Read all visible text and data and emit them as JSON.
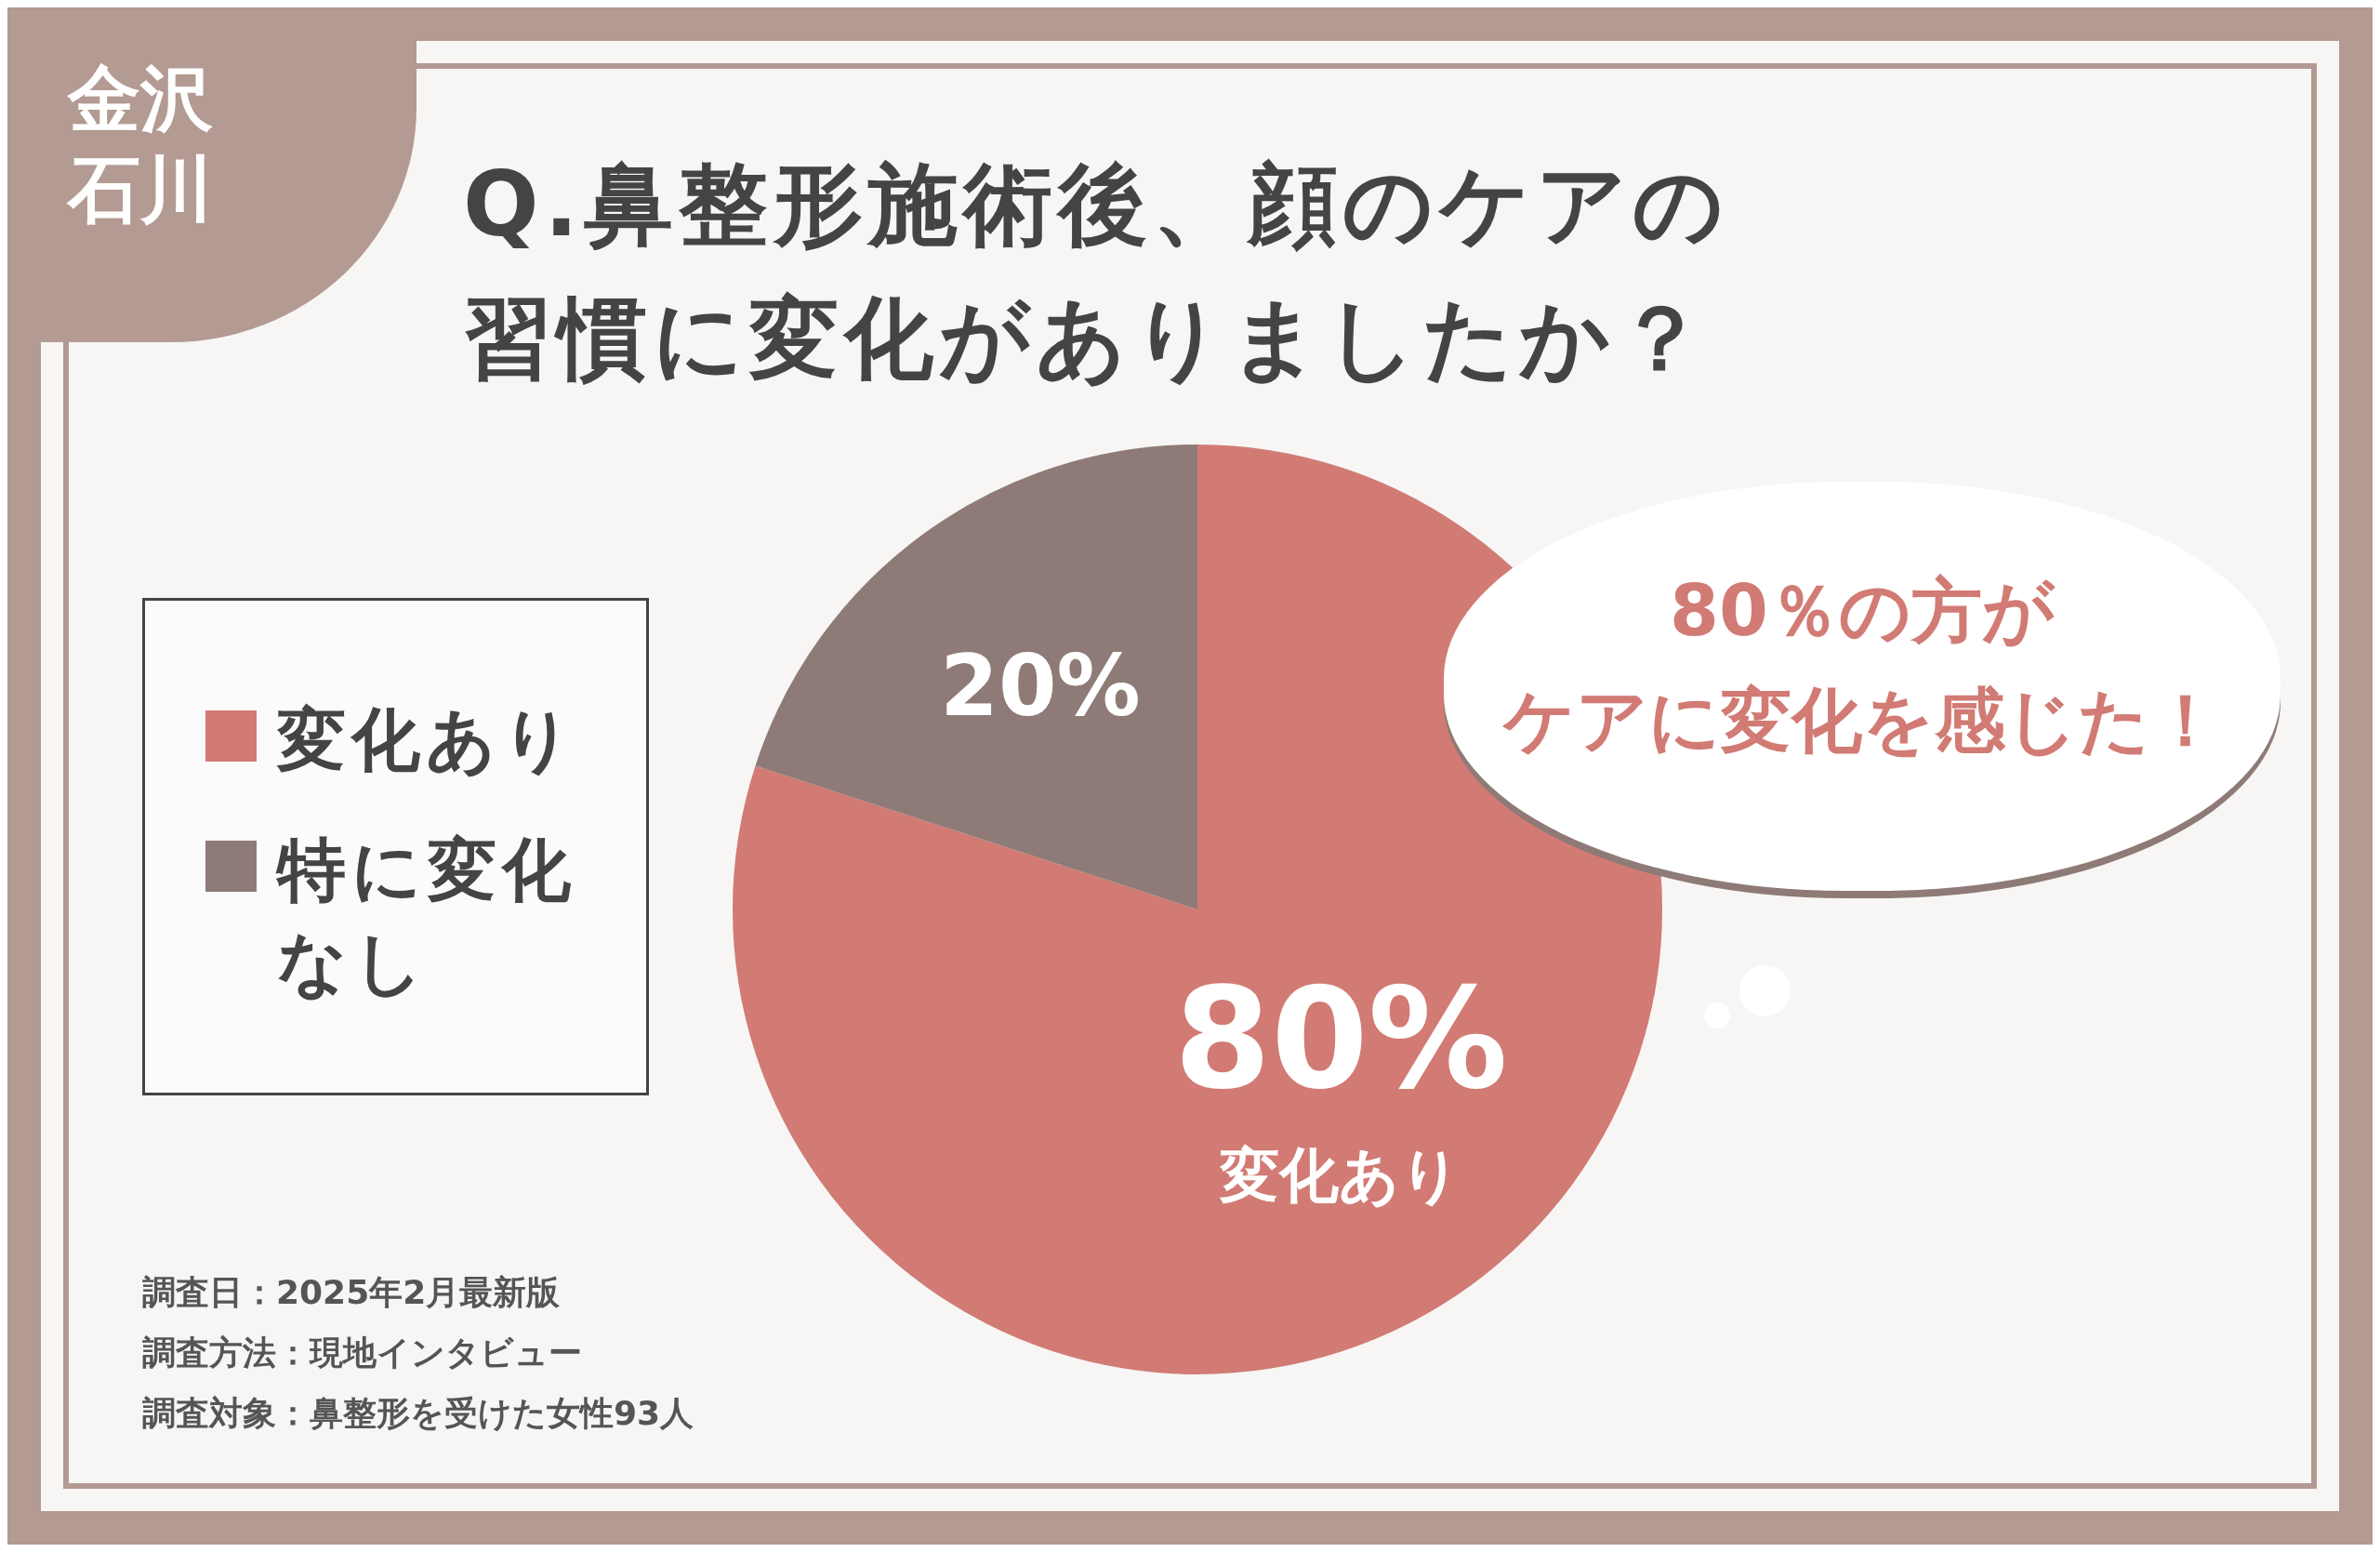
{
  "chart_data": {
    "type": "pie",
    "title": "Q.鼻整形施術後、顔のケアの習慣に変化がありましたか？",
    "categories": [
      "変化あり",
      "特に変化なし"
    ],
    "values": [
      80,
      20
    ],
    "colors": [
      "#d17b74",
      "#8e7a76"
    ],
    "value_labels": [
      "80%\n変化あり",
      "20%"
    ],
    "legend": "left",
    "annotations": [
      "金沢",
      "石川",
      "80％の方が",
      "ケアに変化を感じた！",
      "調査日：2025年2月最新版",
      "調査方法：現地インタビュー",
      "調査対象：鼻整形を受けた女性93人"
    ]
  }
}
